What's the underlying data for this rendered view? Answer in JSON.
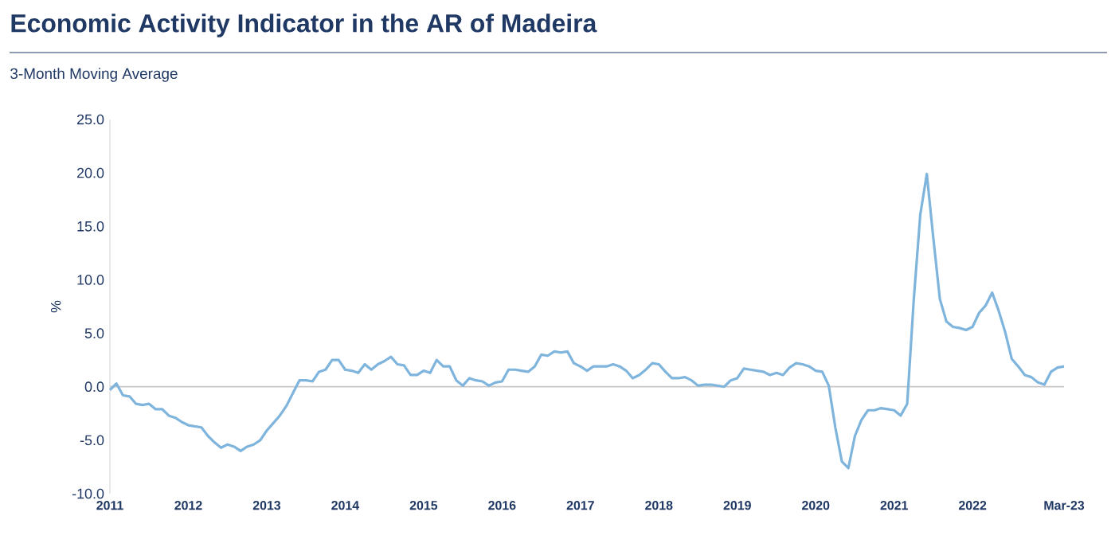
{
  "chart_data": {
    "type": "line",
    "title": "Economic Activity Indicator in the AR of Madeira",
    "subtitle": "3-Month Moving Average",
    "ylabel": "%",
    "x": [
      "2011-01",
      "2011-02",
      "2011-03",
      "2011-04",
      "2011-05",
      "2011-06",
      "2011-07",
      "2011-08",
      "2011-09",
      "2011-10",
      "2011-11",
      "2011-12",
      "2012-01",
      "2012-02",
      "2012-03",
      "2012-04",
      "2012-05",
      "2012-06",
      "2012-07",
      "2012-08",
      "2012-09",
      "2012-10",
      "2012-11",
      "2012-12",
      "2013-01",
      "2013-02",
      "2013-03",
      "2013-04",
      "2013-05",
      "2013-06",
      "2013-07",
      "2013-08",
      "2013-09",
      "2013-10",
      "2013-11",
      "2013-12",
      "2014-01",
      "2014-02",
      "2014-03",
      "2014-04",
      "2014-05",
      "2014-06",
      "2014-07",
      "2014-08",
      "2014-09",
      "2014-10",
      "2014-11",
      "2014-12",
      "2015-01",
      "2015-02",
      "2015-03",
      "2015-04",
      "2015-05",
      "2015-06",
      "2015-07",
      "2015-08",
      "2015-09",
      "2015-10",
      "2015-11",
      "2015-12",
      "2016-01",
      "2016-02",
      "2016-03",
      "2016-04",
      "2016-05",
      "2016-06",
      "2016-07",
      "2016-08",
      "2016-09",
      "2016-10",
      "2016-11",
      "2016-12",
      "2017-01",
      "2017-02",
      "2017-03",
      "2017-04",
      "2017-05",
      "2017-06",
      "2017-07",
      "2017-08",
      "2017-09",
      "2017-10",
      "2017-11",
      "2017-12",
      "2018-01",
      "2018-02",
      "2018-03",
      "2018-04",
      "2018-05",
      "2018-06",
      "2018-07",
      "2018-08",
      "2018-09",
      "2018-10",
      "2018-11",
      "2018-12",
      "2019-01",
      "2019-02",
      "2019-03",
      "2019-04",
      "2019-05",
      "2019-06",
      "2019-07",
      "2019-08",
      "2019-09",
      "2019-10",
      "2019-11",
      "2019-12",
      "2020-01",
      "2020-02",
      "2020-03",
      "2020-04",
      "2020-05",
      "2020-06",
      "2020-07",
      "2020-08",
      "2020-09",
      "2020-10",
      "2020-11",
      "2020-12",
      "2021-01",
      "2021-02",
      "2021-03",
      "2021-04",
      "2021-05",
      "2021-06",
      "2021-07",
      "2021-08",
      "2021-09",
      "2021-10",
      "2021-11",
      "2021-12",
      "2022-01",
      "2022-02",
      "2022-03",
      "2022-04",
      "2022-05",
      "2022-06",
      "2022-07",
      "2022-08",
      "2022-09",
      "2022-10",
      "2022-11",
      "2022-12",
      "2023-01",
      "2023-02",
      "2023-03"
    ],
    "series": [
      {
        "color": "#7fb5dd",
        "values": [
          -0.3,
          0.3,
          -0.8,
          -0.9,
          -1.6,
          -1.7,
          -1.6,
          -2.1,
          -2.1,
          -2.7,
          -2.9,
          -3.3,
          -3.6,
          -3.7,
          -3.8,
          -4.6,
          -5.2,
          -5.7,
          -5.4,
          -5.6,
          -6.0,
          -5.6,
          -5.4,
          -5.0,
          -4.1,
          -3.4,
          -2.7,
          -1.8,
          -0.6,
          0.6,
          0.6,
          0.5,
          1.4,
          1.6,
          2.5,
          2.5,
          1.6,
          1.5,
          1.3,
          2.1,
          1.6,
          2.1,
          2.4,
          2.8,
          2.1,
          2.0,
          1.1,
          1.1,
          1.5,
          1.3,
          2.5,
          1.9,
          1.9,
          0.6,
          0.1,
          0.8,
          0.6,
          0.5,
          0.1,
          0.4,
          0.5,
          1.6,
          1.6,
          1.5,
          1.4,
          1.9,
          3.0,
          2.9,
          3.3,
          3.2,
          3.3,
          2.2,
          1.9,
          1.5,
          1.9,
          1.9,
          1.9,
          2.1,
          1.9,
          1.5,
          0.8,
          1.1,
          1.6,
          2.2,
          2.1,
          1.4,
          0.8,
          0.8,
          0.9,
          0.6,
          0.1,
          0.2,
          0.2,
          0.1,
          0.0,
          0.6,
          0.8,
          1.7,
          1.6,
          1.5,
          1.4,
          1.1,
          1.3,
          1.1,
          1.8,
          2.2,
          2.1,
          1.9,
          1.5,
          1.4,
          0.1,
          -3.8,
          -7.0,
          -7.6,
          -4.6,
          -3.1,
          -2.2,
          -2.2,
          -2.0,
          -2.1,
          -2.2,
          -2.7,
          -1.6,
          8.1,
          16.1,
          19.9,
          13.9,
          8.2,
          6.1,
          5.6,
          5.5,
          5.3,
          5.6,
          6.9,
          7.6,
          8.8,
          7.1,
          5.1,
          2.6,
          1.9,
          1.1,
          0.9,
          0.4,
          0.2,
          1.4,
          1.8,
          1.9
        ]
      }
    ],
    "xlim": [
      "2011-01",
      "2023-03"
    ],
    "xticks": [
      "2011",
      "2012",
      "2013",
      "2014",
      "2015",
      "2016",
      "2017",
      "2018",
      "2019",
      "2020",
      "2021",
      "2022",
      {
        "value": "2023-03",
        "label": "Mar-23"
      }
    ],
    "ylim": [
      -10,
      25
    ],
    "yticks": [
      {
        "value": -10,
        "label": "-10.0"
      },
      {
        "value": -5,
        "label": "-5.0"
      },
      {
        "value": 0,
        "label": "0.0"
      },
      {
        "value": 5,
        "label": "5.0"
      },
      {
        "value": 10,
        "label": "10.0"
      },
      {
        "value": 15,
        "label": "15.0"
      },
      {
        "value": 20,
        "label": "20.0"
      },
      {
        "value": 25,
        "label": "25.0"
      }
    ],
    "ref_lines": [
      {
        "axis": "y",
        "value": 0,
        "color": "#c8c8c8"
      }
    ],
    "marker": "none",
    "line_style": "solid"
  }
}
